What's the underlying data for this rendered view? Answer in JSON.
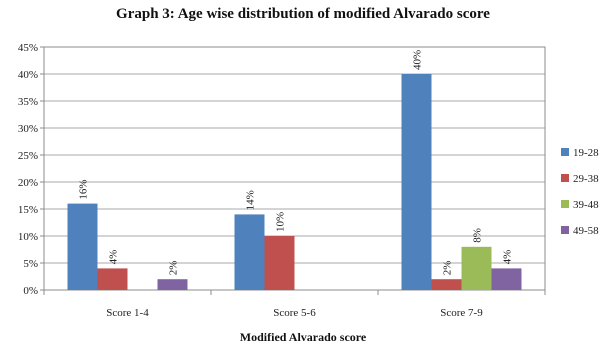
{
  "chart_data": {
    "type": "bar",
    "title": "Graph 3: Age wise distribution of modified Alvarado score",
    "xlabel": "Modified Alvarado score",
    "ylabel": "",
    "ylim": [
      0,
      45
    ],
    "ytick_step": 5,
    "y_unit": "%",
    "grid": true,
    "legend_position": "right",
    "categories": [
      "Score 1-4",
      "Score 5-6",
      "Score 7-9"
    ],
    "series": [
      {
        "name": "19-28",
        "color": "#4f81bd",
        "values": [
          16,
          14,
          40
        ]
      },
      {
        "name": "29-38",
        "color": "#c0504d",
        "values": [
          4,
          10,
          2
        ]
      },
      {
        "name": "39-48",
        "color": "#9bbb59",
        "values": [
          null,
          null,
          8
        ]
      },
      {
        "name": "49-58",
        "color": "#8064a2",
        "values": [
          2,
          null,
          4
        ]
      }
    ]
  }
}
